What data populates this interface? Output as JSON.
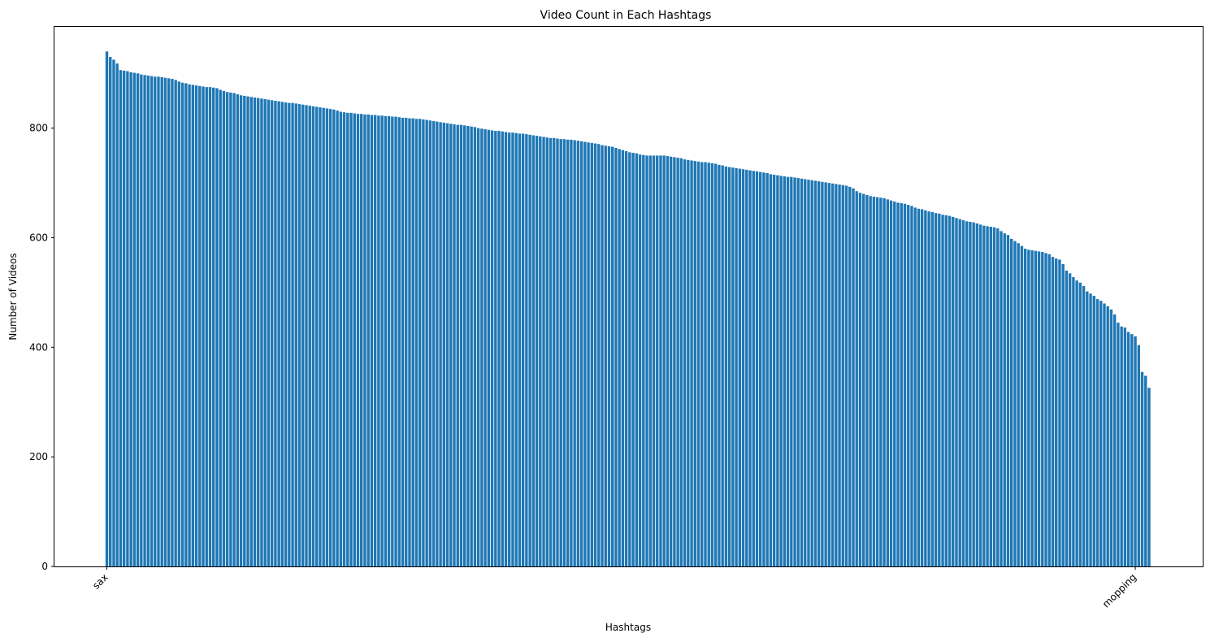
{
  "chart_data": {
    "type": "bar",
    "title": "Video Count in Each Hashtags",
    "xlabel": "Hashtags",
    "ylabel": "Number of Videos",
    "ylim": [
      0,
      985
    ],
    "yticks": [
      0,
      200,
      400,
      600,
      800
    ],
    "xtick_labels": [
      {
        "index": 0,
        "label": "sax"
      },
      {
        "index": 299,
        "label": "mopping"
      }
    ],
    "bar_color": "#1f77b4",
    "grid": false,
    "legend": "none",
    "values": [
      940,
      930,
      925,
      918,
      906,
      905,
      904,
      902,
      901,
      900,
      898,
      897,
      896,
      895,
      894,
      894,
      893,
      892,
      891,
      890,
      888,
      885,
      883,
      882,
      880,
      879,
      878,
      877,
      876,
      875,
      875,
      874,
      873,
      870,
      868,
      866,
      865,
      864,
      862,
      860,
      859,
      858,
      857,
      856,
      855,
      854,
      853,
      852,
      851,
      850,
      849,
      848,
      847,
      846,
      846,
      845,
      844,
      843,
      842,
      841,
      840,
      839,
      838,
      837,
      836,
      835,
      834,
      832,
      830,
      829,
      828,
      828,
      827,
      826,
      826,
      825,
      825,
      824,
      824,
      823,
      823,
      822,
      822,
      821,
      821,
      820,
      819,
      819,
      818,
      818,
      817,
      817,
      816,
      815,
      814,
      813,
      812,
      811,
      810,
      809,
      808,
      807,
      806,
      806,
      805,
      804,
      803,
      802,
      800,
      799,
      798,
      797,
      796,
      795,
      795,
      794,
      793,
      792,
      792,
      791,
      790,
      790,
      789,
      788,
      787,
      786,
      785,
      784,
      783,
      782,
      782,
      781,
      780,
      780,
      779,
      779,
      778,
      777,
      776,
      775,
      774,
      773,
      772,
      771,
      769,
      768,
      767,
      766,
      764,
      762,
      760,
      758,
      756,
      755,
      754,
      752,
      751,
      750,
      750,
      750,
      750,
      750,
      750,
      749,
      748,
      747,
      746,
      745,
      743,
      742,
      741,
      740,
      739,
      738,
      738,
      737,
      736,
      735,
      733,
      732,
      730,
      729,
      728,
      727,
      726,
      725,
      724,
      723,
      722,
      721,
      720,
      719,
      718,
      716,
      715,
      714,
      713,
      712,
      711,
      711,
      710,
      709,
      708,
      707,
      706,
      705,
      704,
      703,
      702,
      701,
      700,
      699,
      698,
      697,
      696,
      695,
      693,
      690,
      685,
      682,
      680,
      678,
      676,
      675,
      674,
      673,
      672,
      670,
      668,
      666,
      664,
      663,
      662,
      660,
      658,
      655,
      653,
      652,
      650,
      648,
      647,
      645,
      644,
      642,
      641,
      640,
      638,
      636,
      634,
      632,
      630,
      629,
      628,
      626,
      624,
      622,
      621,
      620,
      619,
      617,
      612,
      608,
      605,
      598,
      594,
      590,
      585,
      580,
      578,
      577,
      576,
      575,
      574,
      572,
      570,
      565,
      562,
      560,
      552,
      540,
      535,
      528,
      522,
      518,
      512,
      502,
      498,
      494,
      488,
      485,
      480,
      475,
      469,
      460,
      445,
      438,
      436,
      428,
      424,
      420,
      404,
      355,
      348,
      326
    ]
  }
}
